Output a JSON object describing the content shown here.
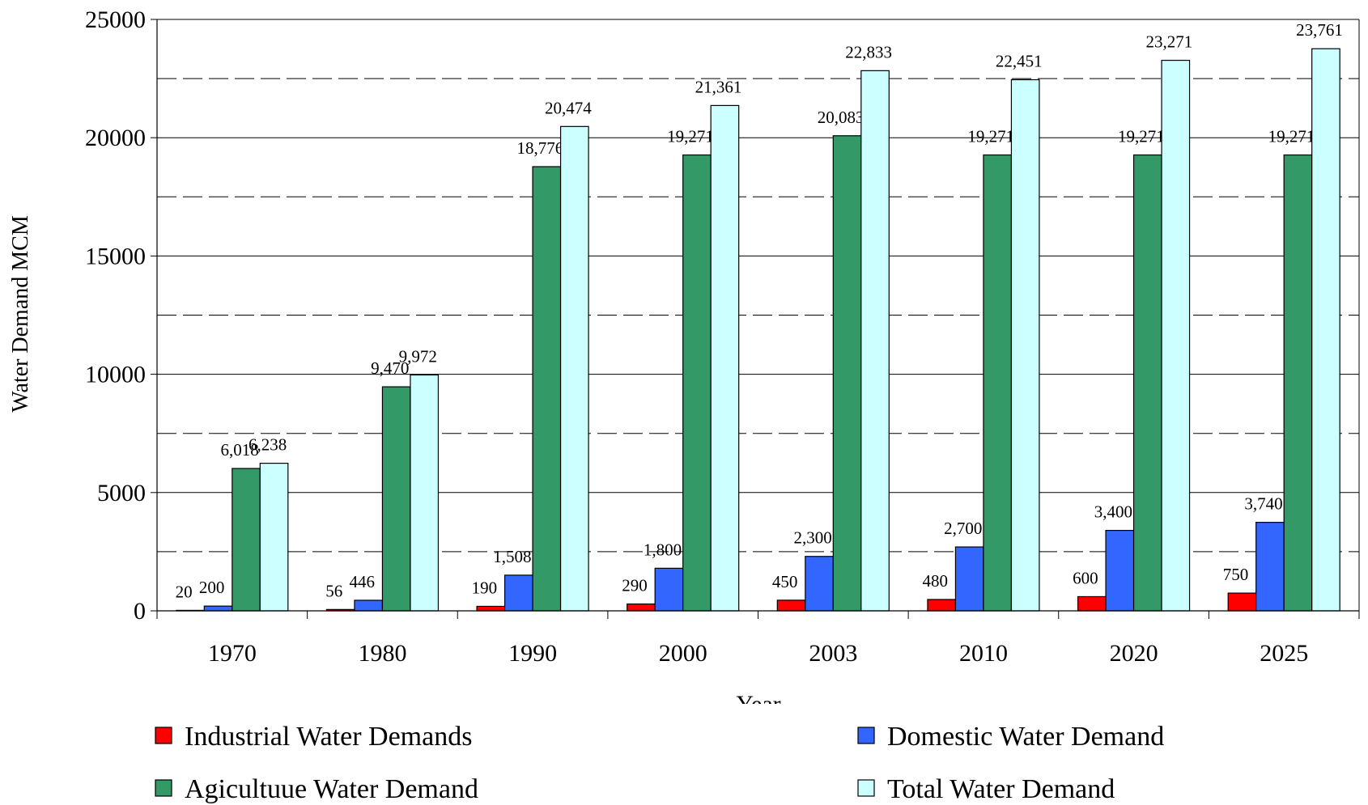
{
  "chart_data": {
    "type": "bar",
    "x_label": "Year",
    "y_label": "Water Demand MCM",
    "categories": [
      "1970",
      "1980",
      "1990",
      "2000",
      "2003",
      "2010",
      "2020",
      "2025"
    ],
    "series": [
      {
        "name": "Industrial Water Demands",
        "color": "#ff0000",
        "values": [
          20,
          56,
          190,
          290,
          450,
          480,
          600,
          750
        ],
        "value_labels": [
          "20",
          "56",
          "190",
          "290",
          "450",
          "480",
          "600",
          "750"
        ]
      },
      {
        "name": "Domestic Water Demand",
        "color": "#3366ff",
        "values": [
          200,
          446,
          1508,
          1800,
          2300,
          2700,
          3400,
          3740
        ],
        "value_labels": [
          "200",
          "446",
          "1,508",
          "1,800",
          "2,300",
          "2,700",
          "3,400",
          "3,740"
        ]
      },
      {
        "name": "Agicultuue Water Demand",
        "color": "#339966",
        "values": [
          6018,
          9470,
          18776,
          19271,
          20083,
          19271,
          19271,
          19271
        ],
        "value_labels": [
          "6,018",
          "9,470",
          "18,776",
          "19,271",
          "20,083",
          "19,271",
          "19,271",
          "19,271"
        ]
      },
      {
        "name": "Total Water Demand",
        "color": "#ccffff",
        "values": [
          6238,
          9972,
          20474,
          21361,
          22833,
          22451,
          23271,
          23761
        ],
        "value_labels": [
          "6,238",
          "9,972",
          "20,474",
          "21,361",
          "22,833",
          "22,451",
          "23,271",
          "23,761"
        ]
      }
    ],
    "ylim": [
      0,
      25000
    ],
    "yticks": [
      0,
      5000,
      10000,
      15000,
      20000,
      25000
    ],
    "minor_yticks": [
      2500,
      7500,
      12500,
      17500,
      22500
    ],
    "grid": true,
    "legend": "bottom"
  }
}
